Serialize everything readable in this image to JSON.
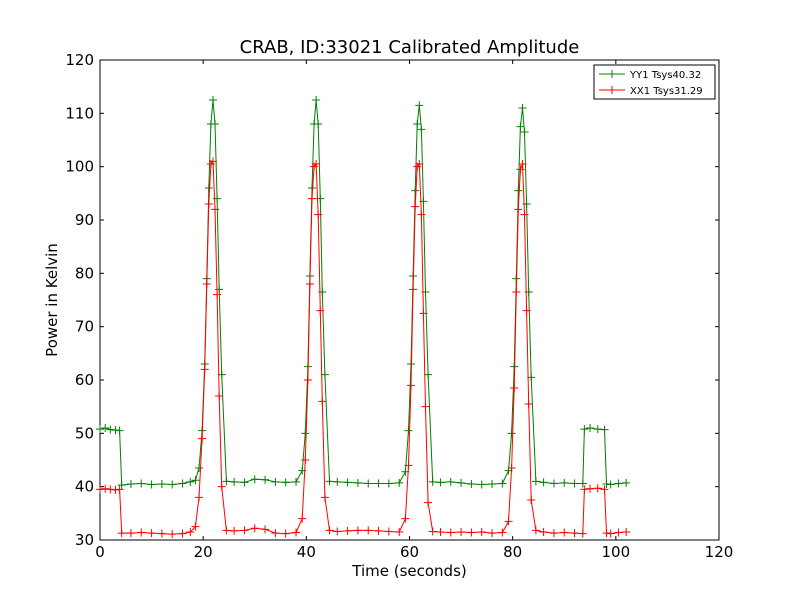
{
  "chart_data": {
    "type": "line",
    "title": "CRAB, ID:33021 Calibrated Amplitude",
    "xlabel": "Time (seconds)",
    "ylabel": "Power in Kelvin",
    "xlim": [
      0,
      120
    ],
    "ylim": [
      30,
      120
    ],
    "xticks": [
      "0",
      "20",
      "40",
      "60",
      "80",
      "100",
      "120"
    ],
    "yticks": [
      "30",
      "40",
      "50",
      "60",
      "70",
      "80",
      "90",
      "100",
      "110",
      "120"
    ],
    "grid": false,
    "legend_position": "top-right",
    "marker": "+",
    "series": [
      {
        "name": "YY1 Tsys40.32",
        "color": "#008000",
        "x": [
          0,
          1,
          2,
          3,
          3.8,
          4.2,
          6,
          8,
          10,
          12,
          14,
          16,
          17.5,
          18.5,
          19.2,
          19.8,
          20.3,
          20.7,
          21.1,
          21.5,
          21.9,
          22.3,
          22.7,
          23.1,
          23.6,
          24.5,
          26,
          28,
          30,
          32,
          34,
          36,
          38,
          39.2,
          39.8,
          40.3,
          40.7,
          41.1,
          41.5,
          41.9,
          42.3,
          42.7,
          43.1,
          43.6,
          44.5,
          46,
          48,
          50,
          52,
          54,
          56,
          58,
          59.2,
          59.8,
          60.3,
          60.7,
          61.1,
          61.5,
          61.9,
          62.3,
          62.7,
          63.1,
          63.6,
          64.5,
          66,
          68,
          70,
          72,
          74,
          76,
          78,
          79.2,
          79.8,
          80.3,
          80.7,
          81.1,
          81.5,
          81.9,
          82.3,
          82.7,
          83.1,
          83.6,
          84.5,
          86,
          88,
          90,
          92,
          93.6,
          93.9,
          95,
          96.5,
          97.8,
          98.2,
          99,
          100.5,
          102
        ],
        "y": [
          50.8,
          51,
          50.7,
          50.6,
          50.5,
          40.3,
          40.5,
          40.6,
          40.4,
          40.5,
          40.4,
          40.6,
          40.9,
          41.2,
          43.5,
          50.5,
          63,
          79,
          96,
          108,
          112.5,
          108,
          94,
          77,
          61,
          41,
          40.9,
          40.8,
          41.4,
          41.3,
          40.9,
          40.8,
          40.9,
          43,
          50,
          62.5,
          79.5,
          96,
          108,
          112.5,
          108,
          94,
          76.5,
          61,
          41,
          40.9,
          40.8,
          40.7,
          40.6,
          40.6,
          40.6,
          40.7,
          42.8,
          50.5,
          63,
          79.5,
          95.5,
          108,
          111.5,
          107,
          93.5,
          76.5,
          61,
          40.9,
          40.8,
          40.9,
          40.7,
          40.5,
          40.4,
          40.5,
          40.6,
          43,
          50,
          62.5,
          79,
          95.5,
          107.5,
          111,
          106.5,
          93,
          76.5,
          60.5,
          41,
          40.8,
          40.6,
          40.7,
          40.6,
          40.6,
          50.8,
          51,
          50.8,
          50.7,
          40.5,
          40.4,
          40.6,
          40.7
        ]
      },
      {
        "name": "XX1 Tsys31.29",
        "color": "#ff0000",
        "x": [
          0,
          1,
          2,
          3,
          3.8,
          4.2,
          6,
          8,
          10,
          12,
          14,
          16,
          17.5,
          18.5,
          19.2,
          19.8,
          20.3,
          20.7,
          21.1,
          21.5,
          21.9,
          22.3,
          22.7,
          23.1,
          23.6,
          24.5,
          26,
          28,
          30,
          32,
          34,
          36,
          38,
          39.2,
          39.8,
          40.3,
          40.7,
          41.1,
          41.5,
          41.9,
          42.3,
          42.7,
          43.1,
          43.6,
          44.5,
          46,
          48,
          50,
          52,
          54,
          56,
          58,
          59.2,
          59.8,
          60.3,
          60.7,
          61.1,
          61.5,
          61.9,
          62.3,
          62.7,
          63.1,
          63.6,
          64.5,
          66,
          68,
          70,
          72,
          74,
          76,
          78,
          79.2,
          79.8,
          80.3,
          80.7,
          81.1,
          81.5,
          81.9,
          82.3,
          82.7,
          83.1,
          83.6,
          84.5,
          86,
          88,
          90,
          92,
          93.6,
          93.9,
          95,
          96.5,
          97.8,
          98.2,
          99,
          100.5,
          102
        ],
        "y": [
          39.5,
          39.6,
          39.5,
          39.4,
          39.5,
          31.3,
          31.3,
          31.4,
          31.3,
          31.2,
          31.1,
          31.2,
          31.5,
          32.5,
          38,
          49,
          62,
          78,
          93,
          100.5,
          101,
          92,
          76,
          57,
          40,
          31.8,
          31.7,
          31.8,
          32.2,
          32,
          31.3,
          31.2,
          31.4,
          34,
          45,
          60,
          78,
          94,
          100,
          100.5,
          91,
          73,
          56,
          38,
          31.8,
          31.6,
          31.7,
          31.8,
          31.8,
          31.7,
          31.6,
          31.5,
          34,
          44,
          59,
          77,
          92.5,
          100,
          100.5,
          91,
          72.5,
          55,
          37,
          31.6,
          31.5,
          31.4,
          31.5,
          31.4,
          31.5,
          31.3,
          31.4,
          33.5,
          43.5,
          58.5,
          76.5,
          92,
          99.5,
          100.5,
          91,
          73,
          55.5,
          37.5,
          31.8,
          31.5,
          31.3,
          31.4,
          31.3,
          31.2,
          39.5,
          39.6,
          39.7,
          39.5,
          31.3,
          31.2,
          31.4,
          31.5
        ]
      }
    ]
  }
}
